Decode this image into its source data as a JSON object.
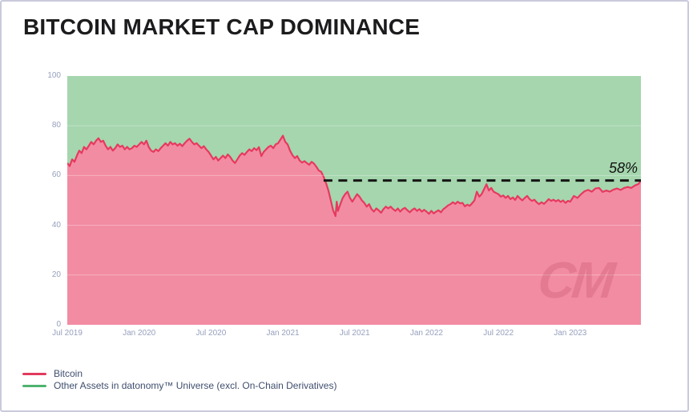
{
  "title": "BITCOIN MARKET CAP DOMINANCE",
  "watermark_text": "CM",
  "annotation": {
    "label": "58%",
    "value": 58,
    "line_start_month": 21.4
  },
  "legend": [
    {
      "label": "Bitcoin",
      "color": "#e23a5e"
    },
    {
      "label": "Other Assets in datonomy™ Universe (excl. On-Chain Derivatives)",
      "color": "#4db36e"
    }
  ],
  "colors": {
    "bitcoin_area": "#f28ca3",
    "bitcoin_line": "#e8395f",
    "other_area": "#a5d6ae",
    "dashed_line": "#161616",
    "gridline": "rgba(255,255,255,0.32)",
    "axis_label": "#97a0bd",
    "legend_text": "#3f4e6d"
  },
  "chart_data": {
    "type": "area",
    "stacked_to": 100,
    "title": "BITCOIN MARKET CAP DOMINANCE",
    "ylabel": "",
    "xlabel": "",
    "ylim": [
      0,
      100
    ],
    "y_ticks": [
      0,
      20,
      40,
      60,
      80,
      100
    ],
    "x_unit": "months since Jul 2019",
    "x_range_months": [
      0,
      47.9
    ],
    "x_ticks": [
      {
        "m": 0,
        "label": "Jul 2019"
      },
      {
        "m": 6,
        "label": "Jan 2020"
      },
      {
        "m": 12,
        "label": "Jul 2020"
      },
      {
        "m": 18,
        "label": "Jan 2021"
      },
      {
        "m": 24,
        "label": "Jul 2021"
      },
      {
        "m": 30,
        "label": "Jan 2022"
      },
      {
        "m": 36,
        "label": "Jul 2022"
      },
      {
        "m": 42,
        "label": "Jan 2023"
      }
    ],
    "series": [
      {
        "name": "Bitcoin",
        "unit": "% of market cap",
        "points": [
          [
            0,
            65
          ],
          [
            0.2,
            63.8
          ],
          [
            0.4,
            66.5
          ],
          [
            0.6,
            65.5
          ],
          [
            0.8,
            68
          ],
          [
            1,
            70
          ],
          [
            1.2,
            69
          ],
          [
            1.4,
            71.5
          ],
          [
            1.6,
            70.5
          ],
          [
            1.8,
            72
          ],
          [
            2,
            73.5
          ],
          [
            2.2,
            72.5
          ],
          [
            2.4,
            74
          ],
          [
            2.6,
            75
          ],
          [
            2.8,
            73.5
          ],
          [
            3,
            74
          ],
          [
            3.2,
            72
          ],
          [
            3.4,
            70.5
          ],
          [
            3.6,
            71.5
          ],
          [
            3.8,
            70
          ],
          [
            4,
            71
          ],
          [
            4.2,
            72.5
          ],
          [
            4.4,
            71.5
          ],
          [
            4.6,
            72
          ],
          [
            4.8,
            70.5
          ],
          [
            5,
            71.5
          ],
          [
            5.2,
            70.5
          ],
          [
            5.4,
            71
          ],
          [
            5.6,
            72
          ],
          [
            5.8,
            71.5
          ],
          [
            6,
            72.5
          ],
          [
            6.2,
            73.5
          ],
          [
            6.4,
            72.5
          ],
          [
            6.6,
            74
          ],
          [
            6.8,
            71.5
          ],
          [
            7,
            70
          ],
          [
            7.2,
            69.5
          ],
          [
            7.4,
            70.5
          ],
          [
            7.6,
            69.8
          ],
          [
            7.8,
            71
          ],
          [
            8,
            72
          ],
          [
            8.2,
            73
          ],
          [
            8.4,
            72
          ],
          [
            8.6,
            73.5
          ],
          [
            8.8,
            72.5
          ],
          [
            9,
            73
          ],
          [
            9.2,
            72
          ],
          [
            9.4,
            72.8
          ],
          [
            9.6,
            71.8
          ],
          [
            9.8,
            73
          ],
          [
            10,
            74
          ],
          [
            10.2,
            74.8
          ],
          [
            10.4,
            73.5
          ],
          [
            10.6,
            72.5
          ],
          [
            10.8,
            73
          ],
          [
            11,
            72
          ],
          [
            11.2,
            71
          ],
          [
            11.4,
            71.8
          ],
          [
            11.6,
            70.5
          ],
          [
            11.8,
            69.5
          ],
          [
            12,
            68
          ],
          [
            12.2,
            66.5
          ],
          [
            12.4,
            67.5
          ],
          [
            12.6,
            66
          ],
          [
            12.8,
            67
          ],
          [
            13,
            68
          ],
          [
            13.2,
            67
          ],
          [
            13.4,
            68.5
          ],
          [
            13.6,
            67.5
          ],
          [
            13.8,
            66
          ],
          [
            14,
            65
          ],
          [
            14.2,
            66.5
          ],
          [
            14.4,
            68
          ],
          [
            14.6,
            69
          ],
          [
            14.8,
            68.3
          ],
          [
            15,
            69.5
          ],
          [
            15.2,
            70.5
          ],
          [
            15.4,
            69.8
          ],
          [
            15.6,
            71
          ],
          [
            15.8,
            70.2
          ],
          [
            16,
            71.4
          ],
          [
            16.2,
            67.8
          ],
          [
            16.4,
            69.5
          ],
          [
            16.6,
            70.5
          ],
          [
            16.8,
            71.5
          ],
          [
            17,
            72
          ],
          [
            17.2,
            71
          ],
          [
            17.4,
            72.5
          ],
          [
            17.6,
            73
          ],
          [
            17.8,
            74.5
          ],
          [
            18,
            76
          ],
          [
            18.2,
            73.5
          ],
          [
            18.4,
            72.5
          ],
          [
            18.6,
            70
          ],
          [
            18.8,
            68.2
          ],
          [
            19,
            67
          ],
          [
            19.2,
            67.8
          ],
          [
            19.4,
            66
          ],
          [
            19.6,
            65.2
          ],
          [
            19.8,
            65.8
          ],
          [
            20,
            65
          ],
          [
            20.2,
            64.3
          ],
          [
            20.4,
            65.5
          ],
          [
            20.6,
            64.8
          ],
          [
            20.8,
            63.5
          ],
          [
            21,
            62
          ],
          [
            21.2,
            61.5
          ],
          [
            21.4,
            59.5
          ],
          [
            21.6,
            57
          ],
          [
            21.8,
            54
          ],
          [
            22,
            50
          ],
          [
            22.2,
            46
          ],
          [
            22.4,
            43.7
          ],
          [
            22.5,
            49.5
          ],
          [
            22.6,
            45.8
          ],
          [
            22.8,
            48.5
          ],
          [
            23,
            51
          ],
          [
            23.2,
            52.5
          ],
          [
            23.4,
            53.5
          ],
          [
            23.6,
            51
          ],
          [
            23.8,
            49.5
          ],
          [
            24,
            51
          ],
          [
            24.2,
            52.5
          ],
          [
            24.4,
            51.5
          ],
          [
            24.6,
            50
          ],
          [
            24.8,
            49
          ],
          [
            25,
            47.5
          ],
          [
            25.2,
            48.5
          ],
          [
            25.4,
            46.5
          ],
          [
            25.6,
            45.5
          ],
          [
            25.8,
            46.8
          ],
          [
            26,
            46
          ],
          [
            26.2,
            45
          ],
          [
            26.4,
            46.5
          ],
          [
            26.6,
            47.5
          ],
          [
            26.8,
            46.8
          ],
          [
            27,
            47.5
          ],
          [
            27.2,
            46.5
          ],
          [
            27.4,
            45.8
          ],
          [
            27.6,
            46.8
          ],
          [
            27.8,
            45.5
          ],
          [
            28,
            46.5
          ],
          [
            28.2,
            47
          ],
          [
            28.4,
            46
          ],
          [
            28.6,
            45.2
          ],
          [
            28.8,
            46.2
          ],
          [
            29,
            46.8
          ],
          [
            29.2,
            45.8
          ],
          [
            29.4,
            46.5
          ],
          [
            29.6,
            45.5
          ],
          [
            29.8,
            46.2
          ],
          [
            30,
            45.5
          ],
          [
            30.2,
            44.6
          ],
          [
            30.4,
            45.8
          ],
          [
            30.6,
            44.8
          ],
          [
            30.8,
            45.5
          ],
          [
            31,
            46
          ],
          [
            31.2,
            45.2
          ],
          [
            31.4,
            46.5
          ],
          [
            31.6,
            47.2
          ],
          [
            31.8,
            48
          ],
          [
            32,
            48.5
          ],
          [
            32.2,
            49.3
          ],
          [
            32.4,
            48.6
          ],
          [
            32.6,
            49.5
          ],
          [
            32.8,
            48.8
          ],
          [
            33,
            49
          ],
          [
            33.2,
            47.6
          ],
          [
            33.4,
            48.3
          ],
          [
            33.6,
            47.8
          ],
          [
            33.8,
            48.8
          ],
          [
            34,
            50
          ],
          [
            34.2,
            53.5
          ],
          [
            34.4,
            51.5
          ],
          [
            34.6,
            52.5
          ],
          [
            34.8,
            54.5
          ],
          [
            35,
            56.5
          ],
          [
            35.2,
            54
          ],
          [
            35.4,
            55
          ],
          [
            35.6,
            53.5
          ],
          [
            35.8,
            53
          ],
          [
            36,
            52.5
          ],
          [
            36.2,
            51.5
          ],
          [
            36.4,
            52
          ],
          [
            36.6,
            51
          ],
          [
            36.8,
            51.8
          ],
          [
            37,
            50.5
          ],
          [
            37.2,
            51.2
          ],
          [
            37.4,
            50.2
          ],
          [
            37.6,
            51.8
          ],
          [
            37.8,
            50.8
          ],
          [
            38,
            50
          ],
          [
            38.2,
            51
          ],
          [
            38.4,
            51.8
          ],
          [
            38.6,
            50.5
          ],
          [
            38.8,
            49.8
          ],
          [
            39,
            50.3
          ],
          [
            39.2,
            49.2
          ],
          [
            39.4,
            48.5
          ],
          [
            39.6,
            49.3
          ],
          [
            39.8,
            48.6
          ],
          [
            40,
            49.5
          ],
          [
            40.2,
            50.5
          ],
          [
            40.4,
            49.8
          ],
          [
            40.6,
            50.3
          ],
          [
            40.8,
            49.6
          ],
          [
            41,
            50.2
          ],
          [
            41.2,
            49.4
          ],
          [
            41.4,
            50
          ],
          [
            41.6,
            49
          ],
          [
            41.8,
            49.8
          ],
          [
            42,
            49.5
          ],
          [
            42.3,
            51.8
          ],
          [
            42.6,
            51
          ],
          [
            42.9,
            52.5
          ],
          [
            43.2,
            53.7
          ],
          [
            43.5,
            54.2
          ],
          [
            43.8,
            53.5
          ],
          [
            44.1,
            54.8
          ],
          [
            44.4,
            55
          ],
          [
            44.7,
            53.4
          ],
          [
            45,
            54
          ],
          [
            45.3,
            53.5
          ],
          [
            45.6,
            54.3
          ],
          [
            45.9,
            54.8
          ],
          [
            46.2,
            54.2
          ],
          [
            46.5,
            55
          ],
          [
            46.8,
            55.4
          ],
          [
            47.1,
            55
          ],
          [
            47.4,
            56
          ],
          [
            47.7,
            56.6
          ],
          [
            47.9,
            58
          ]
        ]
      },
      {
        "name": "Other Assets in datonomy™ Universe (excl. On-Chain Derivatives)",
        "unit": "% of market cap",
        "definition": "100 minus Bitcoin at every x (areas stacked to 100%)"
      }
    ],
    "annotations": [
      {
        "type": "dashed-hline",
        "y": 58,
        "x_start_month": 21.4,
        "x_end_month": 47.9,
        "label": "58%"
      }
    ],
    "legend_position": "bottom-left",
    "grid": "faint horizontal lines at 20/40/60/80"
  }
}
